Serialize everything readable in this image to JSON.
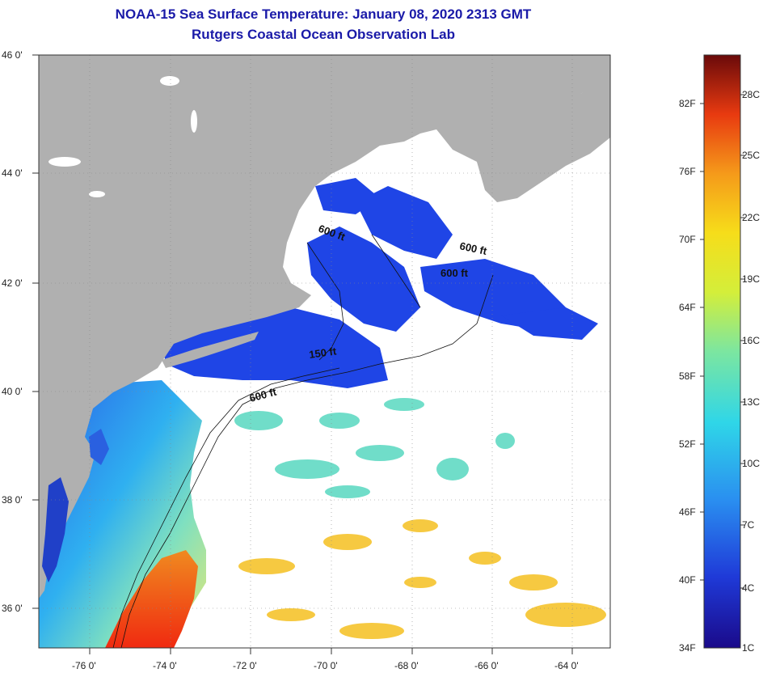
{
  "header": {
    "title": "NOAA-15 Sea Surface Temperature:  January 08, 2020 2313 GMT",
    "subtitle": "Rutgers Coastal Ocean Observation Lab"
  },
  "map": {
    "lat_labels": [
      "46 0'",
      "44 0'",
      "42 0'",
      "40 0'",
      "38 0'",
      "36 0'"
    ],
    "lon_labels": [
      "-76 0'",
      "-74 0'",
      "-72 0'",
      "-70 0'",
      "-68 0'",
      "-66 0'",
      "-64 0'"
    ],
    "contour_labels": [
      "600 ft",
      "600 ft",
      "600 ft",
      "150 ft",
      "600 ft"
    ],
    "colors": {
      "land": "#b0b0b0",
      "cloud": "#ffffff",
      "cold": "#1a3fe0",
      "warm": "#f03010"
    }
  },
  "colorbar": {
    "fahrenheit": [
      "82F",
      "76F",
      "70F",
      "64F",
      "58F",
      "52F",
      "46F",
      "40F",
      "34F"
    ],
    "celsius": [
      "28C",
      "25C",
      "22C",
      "19C",
      "16C",
      "13C",
      "10C",
      "7C",
      "4C",
      "1C"
    ]
  }
}
